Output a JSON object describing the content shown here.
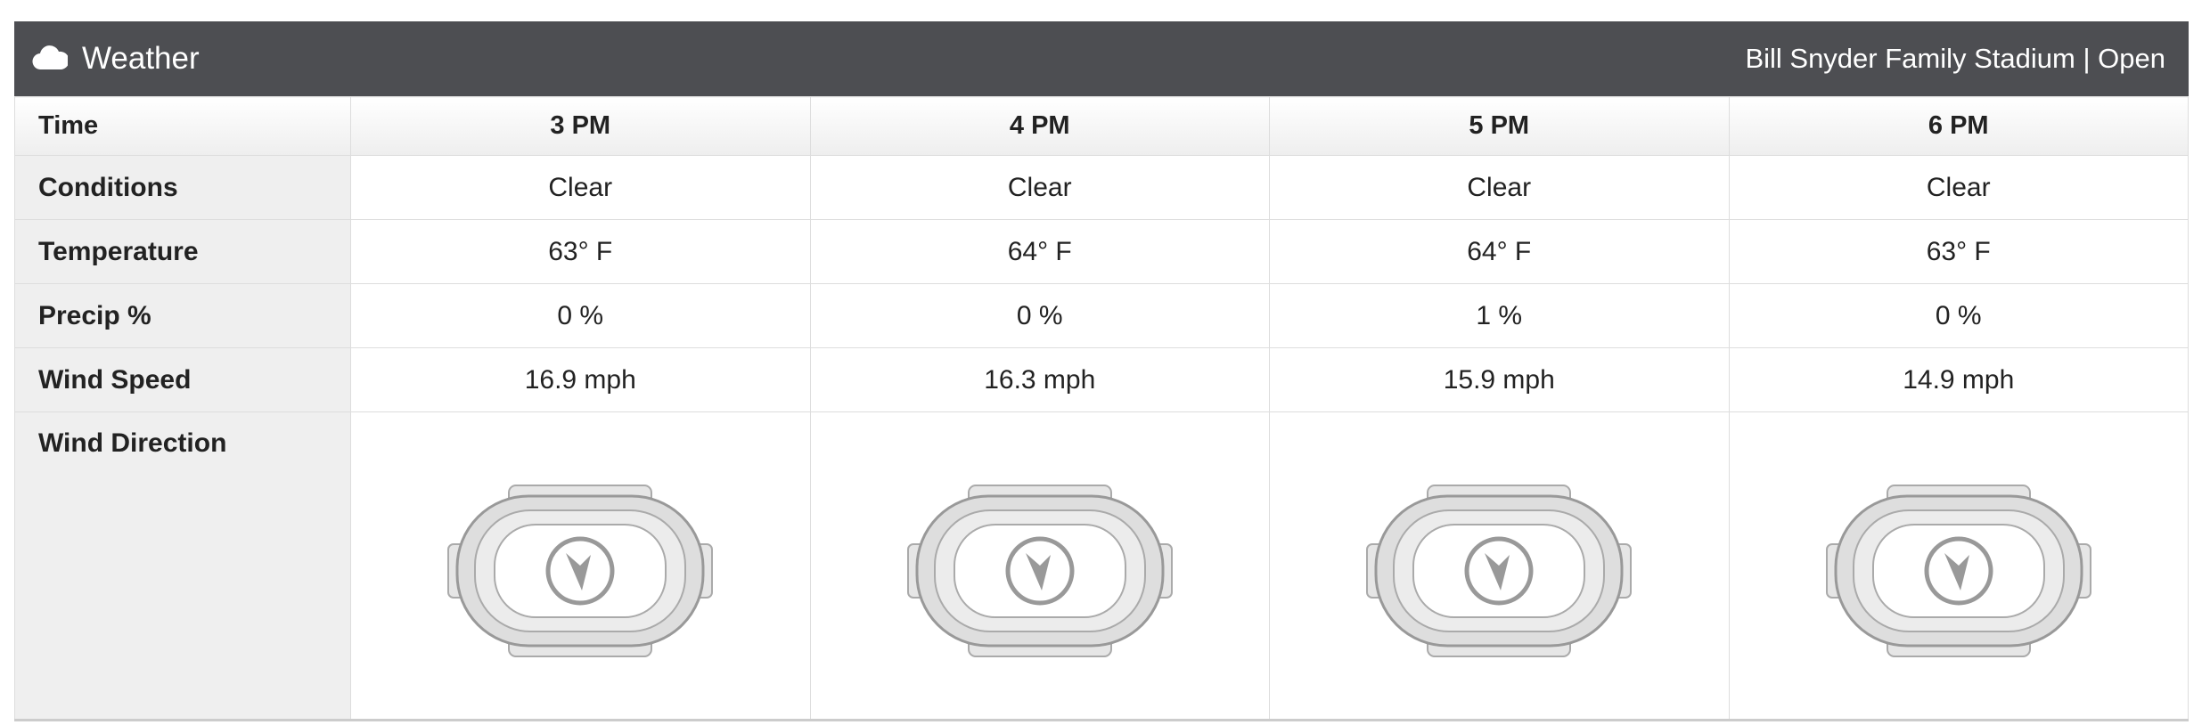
{
  "header": {
    "title": "Weather",
    "location": "Bill Snyder Family Stadium",
    "separator": "|",
    "status": "Open"
  },
  "table": {
    "columns": [
      "Time",
      "3 PM",
      "4 PM",
      "5 PM",
      "6 PM"
    ],
    "rows": [
      [
        "Conditions",
        "Clear",
        "Clear",
        "Clear",
        "Clear"
      ],
      [
        "Temperature",
        "63° F",
        "64° F",
        "64° F",
        "63° F"
      ],
      [
        "Precip %",
        "0 %",
        "0 %",
        "1 %",
        "0 %"
      ],
      [
        "Wind Speed",
        "16.9 mph",
        "16.3 mph",
        "15.9 mph",
        "14.9 mph"
      ]
    ],
    "icon_row_label": "Wind Direction"
  }
}
